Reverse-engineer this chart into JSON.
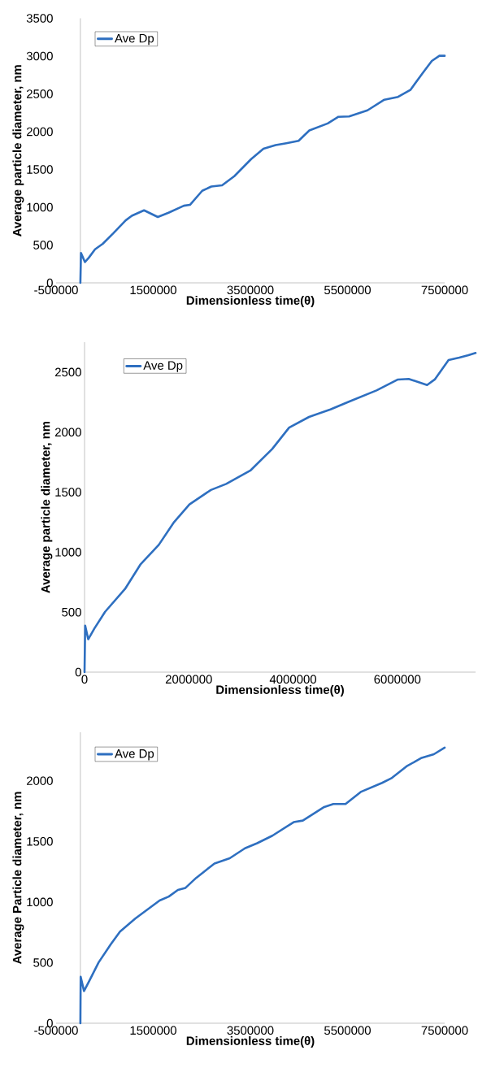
{
  "chart_data": [
    {
      "type": "line",
      "xlabel": "Dimensionless time(θ)",
      "ylabel": "Average particle diameter, nm",
      "xlim": [
        -500000,
        7500000
      ],
      "xticks": [
        -500000,
        1500000,
        3500000,
        5500000,
        7500000
      ],
      "ylim": [
        0,
        3500
      ],
      "yticks": [
        0,
        500,
        1000,
        1500,
        2000,
        2500,
        3000,
        3500
      ],
      "legend": "top left",
      "series": [
        {
          "name": "Ave Dp",
          "color": "#2e6fc0",
          "x": [
            0,
            12600,
            94500,
            176000,
            302000,
            460000,
            680000,
            933000,
            1059000,
            1311000,
            1594000,
            1815000,
            2130000,
            2256000,
            2508000,
            2697000,
            2918000,
            3170000,
            3516000,
            3769000,
            4021000,
            4241000,
            4493000,
            4714000,
            5092000,
            5313000,
            5533000,
            5911000,
            6258000,
            6541000,
            6794000,
            7046000,
            7235000,
            7392000,
            7500000
          ],
          "values": [
            0,
            395,
            274,
            335,
            443,
            516,
            657,
            827,
            887,
            960,
            871,
            927,
            1020,
            1032,
            1218,
            1274,
            1290,
            1411,
            1637,
            1774,
            1822,
            1847,
            1879,
            2016,
            2109,
            2197,
            2202,
            2282,
            2423,
            2460,
            2552,
            2774,
            2935,
            3004,
            3004
          ]
        }
      ]
    },
    {
      "type": "line",
      "xlabel": "Dimensionless time(θ)",
      "ylabel": "Average particle diameter, nm",
      "xlim": [
        0,
        7500000
      ],
      "xticks": [
        0,
        2000000,
        4000000,
        6000000
      ],
      "ylim": [
        0,
        2750
      ],
      "yticks": [
        0,
        500,
        1000,
        1500,
        2000,
        2500
      ],
      "legend": "top left",
      "series": [
        {
          "name": "Ave Dp",
          "color": "#2e6fc0",
          "x": [
            0,
            12000,
            70600,
            188000,
            394000,
            776000,
            1070000,
            1424000,
            1718000,
            2012000,
            2423000,
            2718000,
            3188000,
            3600000,
            3924000,
            4306000,
            4717000,
            5070000,
            5600000,
            6011000,
            6217000,
            6570000,
            6717000,
            6982000,
            7188000,
            7364000,
            7500000
          ],
          "values": [
            0,
            388,
            274,
            363,
            503,
            693,
            896,
            1061,
            1251,
            1398,
            1518,
            1569,
            1683,
            1860,
            2038,
            2127,
            2190,
            2254,
            2348,
            2439,
            2444,
            2393,
            2439,
            2601,
            2621,
            2642,
            2660
          ]
        }
      ]
    },
    {
      "type": "line",
      "xlabel": "Dimensionless time(θ)",
      "ylabel": "Average Particle diameter, nm",
      "xlim": [
        -500000,
        7500000
      ],
      "xticks": [
        -500000,
        1500000,
        3500000,
        5500000,
        7500000
      ],
      "ylim": [
        0,
        2400
      ],
      "yticks": [
        0,
        500,
        1000,
        1500,
        2000
      ],
      "legend": "top left",
      "series": [
        {
          "name": "Ave Dp",
          "color": "#2e6fc0",
          "x": [
            0,
            6000,
            75000,
            188000,
            376000,
            627000,
            816000,
            1129000,
            1631000,
            1820000,
            2008000,
            2165000,
            2384000,
            2761000,
            3075000,
            3388000,
            3639000,
            3953000,
            4392000,
            4580000,
            5020000,
            5208000,
            5459000,
            5772000,
            6212000,
            6400000,
            6714000,
            7027000,
            7278000,
            7500000
          ],
          "values": [
            0,
            383,
            266,
            353,
            502,
            652,
            756,
            863,
            1012,
            1045,
            1100,
            1117,
            1199,
            1318,
            1361,
            1443,
            1485,
            1547,
            1659,
            1672,
            1784,
            1808,
            1808,
            1908,
            1983,
            2020,
            2119,
            2189,
            2219,
            2274
          ]
        }
      ]
    }
  ]
}
